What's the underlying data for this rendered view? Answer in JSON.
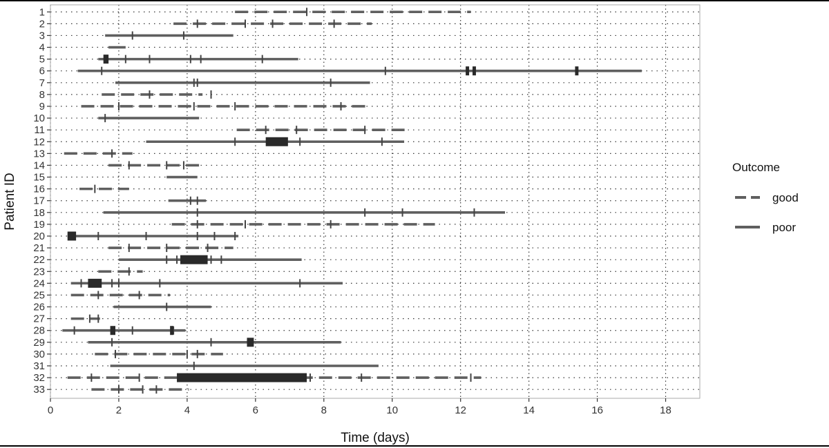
{
  "chart_data": {
    "type": "line",
    "title": "",
    "xlabel": "Time (days)",
    "ylabel": "Patient ID",
    "xlim": [
      0,
      19
    ],
    "xticks": [
      0,
      2,
      4,
      6,
      8,
      10,
      12,
      14,
      16,
      18
    ],
    "yticks": [
      "1",
      "2",
      "3",
      "4",
      "5",
      "6",
      "7",
      "8",
      "9",
      "10",
      "11",
      "12",
      "13",
      "14",
      "15",
      "16",
      "17",
      "18",
      "19",
      "20",
      "21",
      "22",
      "23",
      "24",
      "25",
      "26",
      "27",
      "28",
      "29",
      "30",
      "31",
      "32",
      "33"
    ],
    "grid": "dotted",
    "legend": {
      "title": "Outcome",
      "position": "right",
      "entries": [
        {
          "label": "good",
          "style": "dashed"
        },
        {
          "label": "poor",
          "style": "solid"
        }
      ]
    },
    "colors": {
      "line": "#5f5f5f",
      "heavy": "#2a2a2a",
      "grid": "#333333",
      "panel_border": "#aaaaaa"
    },
    "patients": [
      {
        "id": 1,
        "outcome": "good",
        "start": 5.4,
        "end": 12.3,
        "ticks": [
          7.5
        ],
        "heavy": []
      },
      {
        "id": 2,
        "outcome": "good",
        "start": 3.6,
        "end": 9.4,
        "ticks": [
          4.3,
          5.7,
          6.5,
          8.3
        ],
        "heavy": []
      },
      {
        "id": 3,
        "outcome": "poor",
        "start": 1.6,
        "end": 5.35,
        "ticks": [
          2.4,
          3.9
        ],
        "heavy": []
      },
      {
        "id": 4,
        "outcome": "poor",
        "start": 1.7,
        "end": 2.2,
        "ticks": [],
        "heavy": []
      },
      {
        "id": 5,
        "outcome": "poor",
        "start": 1.4,
        "end": 7.25,
        "ticks": [
          2.2,
          2.9,
          4.1,
          4.4,
          6.2
        ],
        "heavy": [
          [
            1.55,
            1.7
          ]
        ]
      },
      {
        "id": 6,
        "outcome": "poor",
        "start": 0.8,
        "end": 17.3,
        "ticks": [
          1.5,
          9.8,
          12.2
        ],
        "heavy": [
          [
            12.15,
            12.25
          ],
          [
            12.35,
            12.45
          ],
          [
            15.35,
            15.45
          ]
        ]
      },
      {
        "id": 7,
        "outcome": "poor",
        "start": 1.9,
        "end": 9.35,
        "ticks": [
          4.2,
          4.3,
          8.2
        ],
        "heavy": []
      },
      {
        "id": 8,
        "outcome": "good",
        "start": 1.5,
        "end": 4.45,
        "ticks": [
          2.9,
          4.7
        ],
        "heavy": []
      },
      {
        "id": 9,
        "outcome": "good",
        "start": 0.9,
        "end": 9.35,
        "ticks": [
          2.0,
          4.2,
          5.4,
          8.5
        ],
        "heavy": []
      },
      {
        "id": 10,
        "outcome": "poor",
        "start": 1.4,
        "end": 4.35,
        "ticks": [
          1.6
        ],
        "heavy": []
      },
      {
        "id": 11,
        "outcome": "good",
        "start": 5.45,
        "end": 10.45,
        "ticks": [
          6.3,
          7.2,
          9.2
        ],
        "heavy": []
      },
      {
        "id": 12,
        "outcome": "poor",
        "start": 2.8,
        "end": 10.35,
        "ticks": [
          5.4,
          7.3,
          9.7
        ],
        "heavy": [
          [
            6.3,
            6.95
          ]
        ]
      },
      {
        "id": 13,
        "outcome": "good",
        "start": 0.4,
        "end": 2.4,
        "ticks": [
          1.8
        ],
        "heavy": []
      },
      {
        "id": 14,
        "outcome": "good",
        "start": 1.7,
        "end": 4.5,
        "ticks": [
          2.3,
          3.4,
          3.9
        ],
        "heavy": []
      },
      {
        "id": 15,
        "outcome": "poor",
        "start": 3.4,
        "end": 4.3,
        "ticks": [],
        "heavy": []
      },
      {
        "id": 16,
        "outcome": "good",
        "start": 0.85,
        "end": 2.3,
        "ticks": [
          1.3
        ],
        "heavy": []
      },
      {
        "id": 17,
        "outcome": "poor",
        "start": 3.45,
        "end": 4.55,
        "ticks": [
          4.1,
          4.3
        ],
        "heavy": []
      },
      {
        "id": 18,
        "outcome": "poor",
        "start": 1.55,
        "end": 13.3,
        "ticks": [
          4.3,
          9.2,
          10.3,
          12.4
        ],
        "heavy": []
      },
      {
        "id": 19,
        "outcome": "good",
        "start": 3.55,
        "end": 11.25,
        "ticks": [
          4.3,
          5.7,
          8.2
        ],
        "heavy": []
      },
      {
        "id": 20,
        "outcome": "poor",
        "start": 0.5,
        "end": 5.5,
        "ticks": [
          1.4,
          2.8,
          4.3,
          4.8,
          5.4
        ],
        "heavy": [
          [
            0.5,
            0.75
          ]
        ]
      },
      {
        "id": 21,
        "outcome": "good",
        "start": 1.7,
        "end": 5.35,
        "ticks": [
          2.3,
          3.4,
          4.6
        ],
        "heavy": []
      },
      {
        "id": 22,
        "outcome": "poor",
        "start": 2.0,
        "end": 7.35,
        "ticks": [
          3.4,
          3.7,
          4.7,
          5.0
        ],
        "heavy": [
          [
            3.8,
            4.6
          ]
        ]
      },
      {
        "id": 23,
        "outcome": "good",
        "start": 1.4,
        "end": 2.7,
        "ticks": [
          2.3
        ],
        "heavy": []
      },
      {
        "id": 24,
        "outcome": "poor",
        "start": 0.6,
        "end": 8.55,
        "ticks": [
          0.9,
          1.8,
          2.0,
          3.2,
          7.3
        ],
        "heavy": [
          [
            1.1,
            1.5
          ]
        ]
      },
      {
        "id": 25,
        "outcome": "good",
        "start": 0.6,
        "end": 3.5,
        "ticks": [
          1.4,
          2.6
        ],
        "heavy": []
      },
      {
        "id": 26,
        "outcome": "poor",
        "start": 1.85,
        "end": 4.7,
        "ticks": [
          3.4
        ],
        "heavy": []
      },
      {
        "id": 27,
        "outcome": "good",
        "start": 0.6,
        "end": 1.45,
        "ticks": [
          1.15,
          1.4
        ],
        "heavy": []
      },
      {
        "id": 28,
        "outcome": "poor",
        "start": 0.35,
        "end": 3.95,
        "ticks": [
          0.7,
          2.4,
          3.6
        ],
        "heavy": [
          [
            1.75,
            1.9
          ],
          [
            3.5,
            3.6
          ]
        ]
      },
      {
        "id": 29,
        "outcome": "poor",
        "start": 1.1,
        "end": 8.5,
        "ticks": [
          1.8,
          4.7,
          5.9
        ],
        "heavy": [
          [
            5.75,
            5.95
          ]
        ]
      },
      {
        "id": 30,
        "outcome": "good",
        "start": 1.3,
        "end": 5.05,
        "ticks": [
          1.9,
          4.0,
          4.3
        ],
        "heavy": []
      },
      {
        "id": 31,
        "outcome": "poor",
        "start": 1.75,
        "end": 9.6,
        "ticks": [
          4.2
        ],
        "heavy": []
      },
      {
        "id": 32,
        "outcome": "good",
        "start": 0.5,
        "end": 12.6,
        "ticks": [
          1.2,
          2.6,
          7.6,
          9.1,
          12.3
        ],
        "heavy": [
          [
            3.7,
            7.5
          ]
        ]
      },
      {
        "id": 33,
        "outcome": "good",
        "start": 1.2,
        "end": 4.05,
        "ticks": [
          2.0,
          2.7,
          3.1
        ],
        "heavy": []
      }
    ]
  }
}
